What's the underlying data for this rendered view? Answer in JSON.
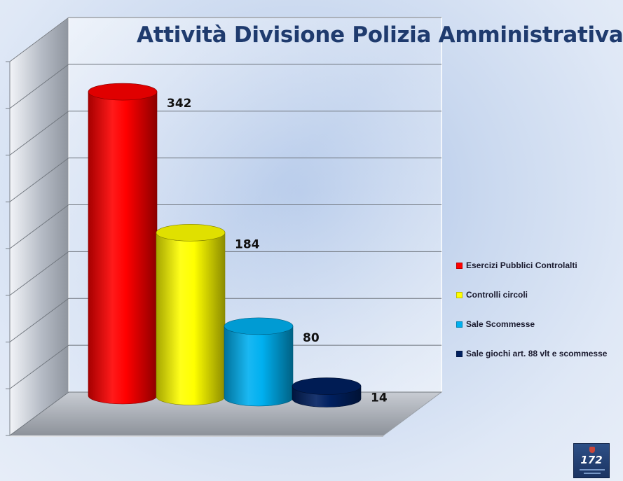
{
  "chart_data": {
    "type": "bar",
    "style": "3d-cylinder",
    "title": "Attività Divisione Polizia Amministrativa",
    "categories": [
      "Esercizi Pubblici Controlalti",
      "Controlli circoli",
      "Sale Scommesse",
      "Sale giochi art. 88 vlt e scommesse"
    ],
    "values": [
      342,
      184,
      80,
      14
    ],
    "data_labels": [
      "342",
      "184",
      "80",
      "14"
    ],
    "colors": [
      "#ff0000",
      "#ffff00",
      "#00b0f0",
      "#002060"
    ],
    "ylim": [
      0,
      400
    ],
    "grid": true,
    "legend_position": "right",
    "xlabel": "",
    "ylabel": ""
  },
  "logo": {
    "icon": "police-logo-icon",
    "text": "172"
  }
}
